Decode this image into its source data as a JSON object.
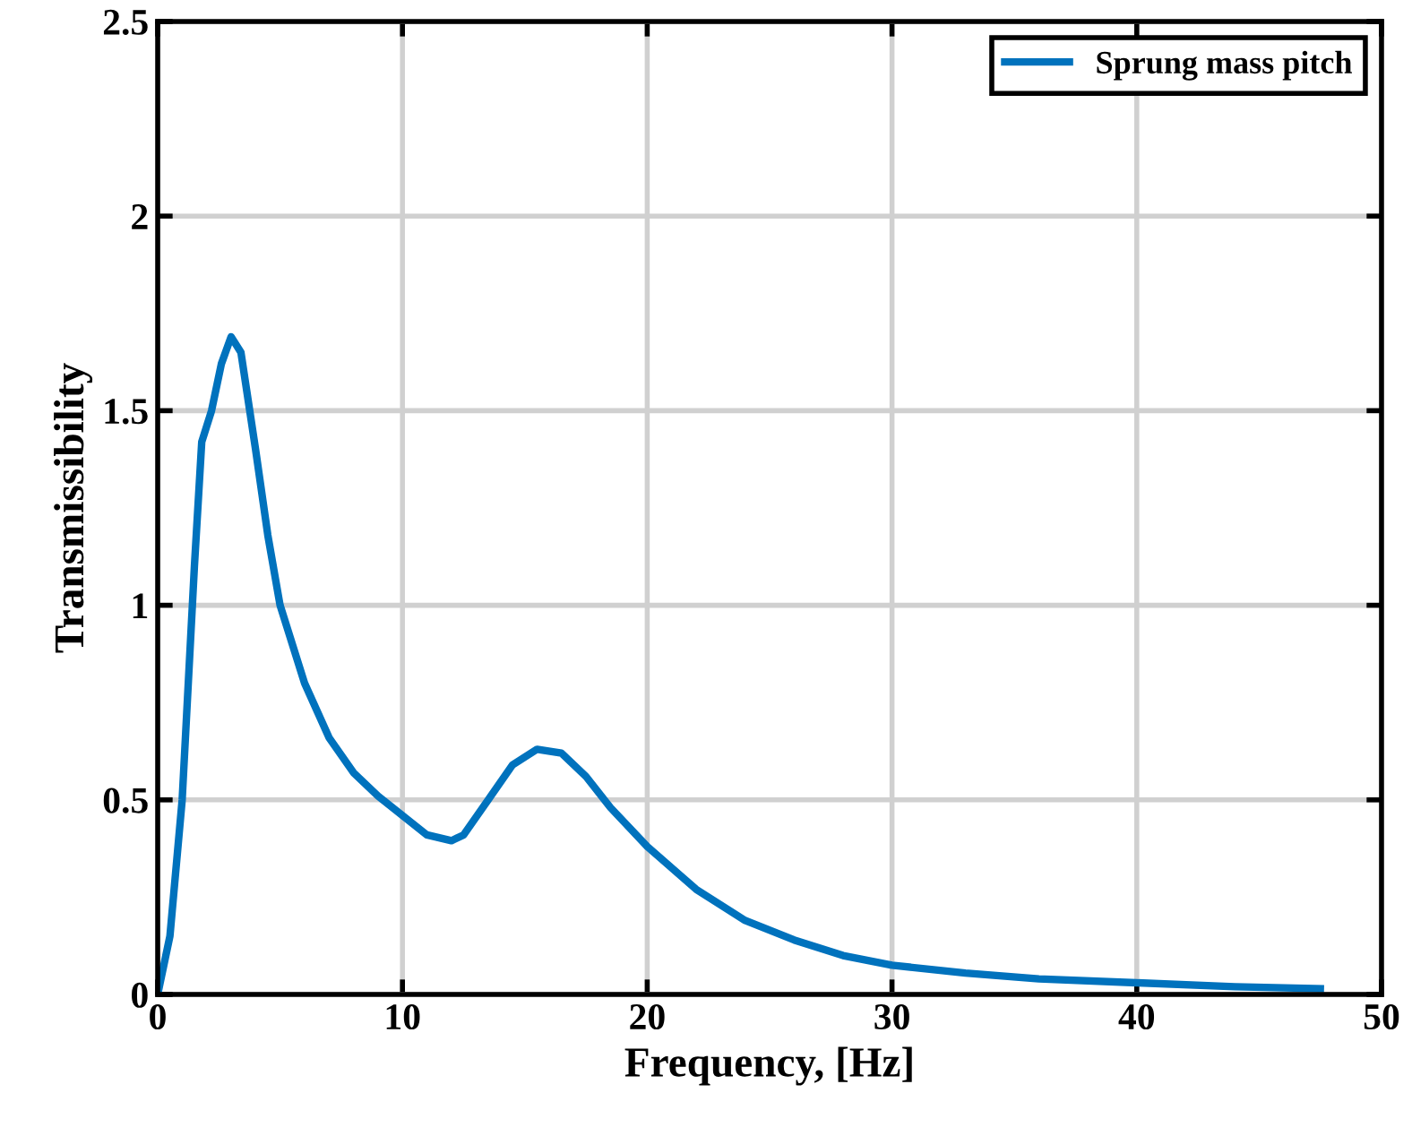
{
  "chart_data": {
    "type": "line",
    "xlabel": "Frequency, [Hz]",
    "ylabel": "Transmissibility",
    "x": [
      0,
      0.5,
      1,
      1.5,
      1.8,
      2.2,
      2.6,
      3,
      3.4,
      4,
      4.5,
      5,
      6,
      7,
      8,
      9,
      10,
      11,
      12,
      12.5,
      13.5,
      14.5,
      15.5,
      16.5,
      17.5,
      18.5,
      20,
      22,
      24,
      26,
      28,
      30,
      33,
      36,
      40,
      44,
      47.5
    ],
    "series": [
      {
        "name": "Sprung mass pitch",
        "color": "#0072bd",
        "values": [
          0,
          0.15,
          0.5,
          1.1,
          1.42,
          1.5,
          1.62,
          1.69,
          1.65,
          1.4,
          1.18,
          1.0,
          0.8,
          0.66,
          0.57,
          0.51,
          0.46,
          0.41,
          0.395,
          0.41,
          0.5,
          0.59,
          0.63,
          0.62,
          0.56,
          0.48,
          0.38,
          0.27,
          0.19,
          0.14,
          0.1,
          0.075,
          0.055,
          0.04,
          0.03,
          0.02,
          0.015
        ]
      }
    ],
    "xlim": [
      0,
      50
    ],
    "ylim": [
      0,
      2.5
    ],
    "xticks": [
      0,
      10,
      20,
      30,
      40,
      50
    ],
    "yticks": [
      0,
      0.5,
      1,
      1.5,
      2,
      2.5
    ],
    "grid": true,
    "legend": "top right",
    "marker": "none",
    "line_style": "solid"
  }
}
